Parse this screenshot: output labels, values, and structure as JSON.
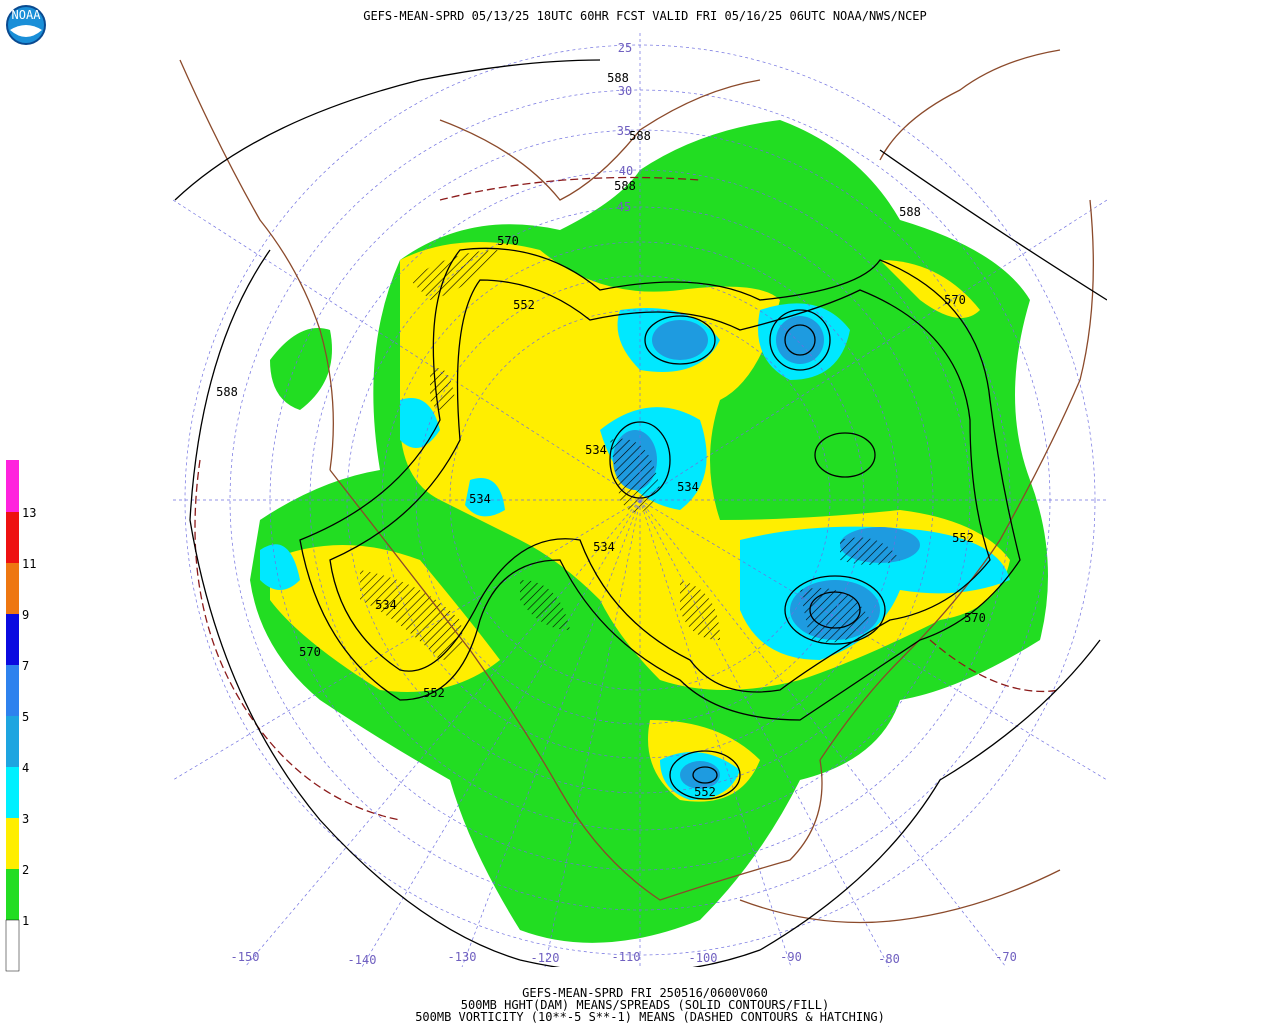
{
  "header": {
    "title": "GEFS-MEAN-SPRD 05/13/25 18UTC 60HR FCST VALID FRI 05/16/25 06UTC NOAA/NWS/NCEP"
  },
  "colorbar": {
    "labels": [
      1,
      2,
      3,
      4,
      5,
      7,
      9,
      11,
      13
    ]
  },
  "map": {
    "longitude_labels": [
      -150,
      -140,
      -130,
      -120,
      -110,
      -100,
      -90,
      -80,
      -70
    ],
    "latitude_labels": [
      25,
      30,
      35,
      40,
      45
    ],
    "contour_labels": [
      588,
      588,
      588,
      588,
      588,
      570,
      570,
      570,
      570,
      552,
      552,
      552,
      552,
      534,
      534,
      534,
      534,
      534
    ]
  },
  "footer": {
    "lines": [
      "GEFS-MEAN-SPRD FRI 250516/0600V060",
      "500MB HGHT(DAM) MEANS/SPREADS (SOLID CONTOURS/FILL)",
      "500MB VORTICITY (10**-5 S**-1) MEANS (DASHED CONTOURS & HATCHING)"
    ]
  }
}
